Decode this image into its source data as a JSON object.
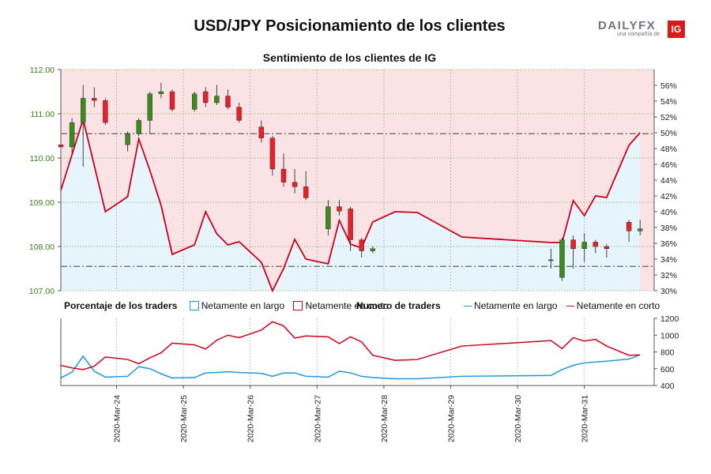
{
  "title": "USD/JPY Posicionamiento de los clientes",
  "logo": {
    "brand": "DAILYFX",
    "tagline": "una compañía de",
    "ig": "IG"
  },
  "colors": {
    "long": "#1f95e0",
    "short": "#cc0018",
    "long_fill": "#e6f4fc",
    "short_fill": "#fbe2e5",
    "candle_up": "#3d8a1e",
    "candle_down": "#e8202a",
    "axis_label_price": "#3b7d17"
  },
  "chart_data": [
    {
      "type": "candlestick",
      "title": "Sentimiento de los clientes de IG",
      "ylim": [
        107,
        112
      ],
      "yticks": [
        "107.00",
        "108.00",
        "109.00",
        "110.00",
        "111.00",
        "112.00"
      ],
      "reference_lines": [
        110.55,
        107.55
      ],
      "candles": [
        {
          "t": 0.0,
          "o": 110.3,
          "h": 110.35,
          "l": 109.65,
          "c": 110.25
        },
        {
          "t": 1.5,
          "o": 110.25,
          "h": 110.9,
          "l": 110.1,
          "c": 110.8
        },
        {
          "t": 3.0,
          "o": 110.8,
          "h": 111.65,
          "l": 109.8,
          "c": 111.35
        },
        {
          "t": 4.5,
          "o": 111.35,
          "h": 111.6,
          "l": 111.15,
          "c": 111.3
        },
        {
          "t": 6.0,
          "o": 111.3,
          "h": 111.35,
          "l": 110.75,
          "c": 110.8
        },
        {
          "t": 9.0,
          "o": 110.3,
          "h": 110.6,
          "l": 110.15,
          "c": 110.55
        },
        {
          "t": 10.5,
          "o": 110.55,
          "h": 110.9,
          "l": 110.5,
          "c": 110.85
        },
        {
          "t": 12.0,
          "o": 110.85,
          "h": 111.5,
          "l": 110.55,
          "c": 111.45
        },
        {
          "t": 13.5,
          "o": 111.45,
          "h": 111.7,
          "l": 111.35,
          "c": 111.5
        },
        {
          "t": 15.0,
          "o": 111.5,
          "h": 111.55,
          "l": 111.05,
          "c": 111.1
        },
        {
          "t": 18.0,
          "o": 111.1,
          "h": 111.5,
          "l": 111.05,
          "c": 111.45
        },
        {
          "t": 19.5,
          "o": 111.5,
          "h": 111.6,
          "l": 111.15,
          "c": 111.25
        },
        {
          "t": 21.0,
          "o": 111.25,
          "h": 111.65,
          "l": 111.2,
          "c": 111.4
        },
        {
          "t": 22.5,
          "o": 111.4,
          "h": 111.55,
          "l": 111.1,
          "c": 111.15
        },
        {
          "t": 24.0,
          "o": 111.15,
          "h": 111.25,
          "l": 110.8,
          "c": 110.85
        },
        {
          "t": 27.0,
          "o": 110.7,
          "h": 110.85,
          "l": 110.35,
          "c": 110.45
        },
        {
          "t": 28.5,
          "o": 110.45,
          "h": 110.5,
          "l": 109.6,
          "c": 109.75
        },
        {
          "t": 30.0,
          "o": 109.75,
          "h": 110.1,
          "l": 109.35,
          "c": 109.45
        },
        {
          "t": 31.5,
          "o": 109.45,
          "h": 109.75,
          "l": 109.2,
          "c": 109.35
        },
        {
          "t": 33.0,
          "o": 109.35,
          "h": 109.7,
          "l": 109.05,
          "c": 109.1
        },
        {
          "t": 36.0,
          "o": 108.4,
          "h": 109.05,
          "l": 108.25,
          "c": 108.9
        },
        {
          "t": 37.5,
          "o": 108.9,
          "h": 109.05,
          "l": 108.7,
          "c": 108.8
        },
        {
          "t": 39.0,
          "o": 108.85,
          "h": 108.9,
          "l": 107.9,
          "c": 108.15
        },
        {
          "t": 40.5,
          "o": 108.15,
          "h": 108.2,
          "l": 107.75,
          "c": 107.9
        },
        {
          "t": 42.0,
          "o": 107.9,
          "h": 108.0,
          "l": 107.85,
          "c": 107.95
        },
        {
          "t": 66.0,
          "o": 107.7,
          "h": 107.95,
          "l": 107.5,
          "c": 107.7
        },
        {
          "t": 67.5,
          "o": 107.3,
          "h": 108.2,
          "l": 107.22,
          "c": 108.15
        },
        {
          "t": 69.0,
          "o": 108.15,
          "h": 108.25,
          "l": 107.5,
          "c": 107.95
        },
        {
          "t": 70.5,
          "o": 107.95,
          "h": 108.3,
          "l": 107.65,
          "c": 108.1
        },
        {
          "t": 72.0,
          "o": 108.1,
          "h": 108.15,
          "l": 107.85,
          "c": 108.0
        },
        {
          "t": 73.5,
          "o": 108.0,
          "h": 108.05,
          "l": 107.75,
          "c": 107.95
        },
        {
          "t": 76.5,
          "o": 108.55,
          "h": 108.6,
          "l": 108.1,
          "c": 108.35
        },
        {
          "t": 78.0,
          "o": 108.35,
          "h": 108.6,
          "l": 108.25,
          "c": 108.4
        }
      ],
      "sentiment": {
        "ylim": [
          30,
          58
        ],
        "yticks": [
          "30%",
          "32%",
          "34%",
          "36%",
          "38%",
          "40%",
          "42%",
          "44%",
          "46%",
          "48%",
          "50%",
          "52%",
          "54%",
          "56%"
        ],
        "x": [
          0,
          3,
          6,
          9,
          10.5,
          12,
          13.5,
          15,
          18,
          19.5,
          21,
          22.5,
          24,
          27,
          28.5,
          30,
          31.5,
          33,
          36,
          37.5,
          39,
          40.5,
          42,
          45,
          48,
          54,
          66,
          67.5,
          69,
          70.5,
          72,
          73.5,
          76.5,
          78
        ],
        "net_short": [
          42.7,
          51.7,
          40.0,
          41.9,
          49.2,
          45.2,
          40.8,
          34.6,
          35.8,
          40.0,
          37.2,
          35.8,
          36.2,
          33.6,
          30.0,
          32.8,
          36.5,
          34.0,
          33.4,
          38.9,
          35.9,
          35.4,
          38.7,
          40.0,
          39.9,
          36.8,
          36.1,
          36.1,
          41.4,
          39.5,
          42.0,
          41.8,
          48.4,
          50.0
        ]
      }
    },
    {
      "type": "line",
      "title": "Numero de traders",
      "ylim": [
        400,
        1200
      ],
      "yticks": [
        "400",
        "600",
        "800",
        "1000",
        "1200"
      ],
      "xticks": [
        "2020-Mar-24",
        "2020-Mar-25",
        "2020-Mar-26",
        "2020-Mar-27",
        "2020-Mar-28",
        "2020-Mar-29",
        "2020-Mar-30",
        "2020-Mar-31"
      ],
      "xtick_pos": [
        7.5,
        16.5,
        25.5,
        34.5,
        43.5,
        52.5,
        61.5,
        70.5
      ],
      "x": [
        0,
        1.5,
        3,
        4.5,
        6,
        9,
        10.5,
        12,
        13.5,
        15,
        18,
        19.5,
        21,
        22.5,
        24,
        27,
        28.5,
        30,
        31.5,
        33,
        36,
        37.5,
        39,
        40.5,
        42,
        45,
        48,
        54,
        66,
        67.5,
        69,
        70.5,
        72,
        73.5,
        76.5,
        78
      ],
      "series": [
        {
          "name": "Netamente en largo",
          "values": [
            490,
            560,
            750,
            570,
            500,
            510,
            625,
            600,
            540,
            490,
            495,
            550,
            555,
            565,
            555,
            545,
            510,
            550,
            550,
            510,
            500,
            570,
            550,
            510,
            495,
            480,
            480,
            510,
            520,
            590,
            640,
            670,
            680,
            690,
            715,
            765
          ]
        },
        {
          "name": "Netamente en corto",
          "values": [
            640,
            610,
            590,
            630,
            740,
            710,
            660,
            730,
            790,
            905,
            885,
            835,
            940,
            1000,
            970,
            1060,
            1160,
            1110,
            965,
            990,
            980,
            900,
            980,
            920,
            760,
            700,
            710,
            870,
            935,
            840,
            970,
            930,
            950,
            870,
            760,
            765
          ]
        }
      ]
    }
  ],
  "legend": {
    "pct_title": "Porcentaje de los traders",
    "pct_long": "Netamente en largo",
    "pct_short": "Netamente en corto",
    "num_title": "Numero de traders",
    "num_long": "Netamente en largo",
    "num_short": "Netamente en corto"
  }
}
